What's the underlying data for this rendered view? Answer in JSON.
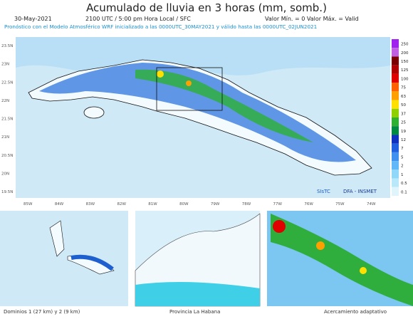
{
  "header": {
    "title": "Acumulado de lluvia en 3 horas (mm, somb.)",
    "date": "30-May-2021",
    "time": "2100 UTC / 5:00 pm Hora Local / SFC",
    "range": "Valor Mín. = 0  Valor Máx. = Valid",
    "forecast": "Pronóstico con el Modelo Atmosférico WRF inicializado a las 0000UTC_30MAY2021 y válido hasta las 0000UTC_02JUN2021"
  },
  "map": {
    "lat_labels": [
      "23.5N",
      "23N",
      "22.5N",
      "22N",
      "21.5N",
      "21N",
      "20.5N",
      "20N",
      "19.5N"
    ],
    "lon_labels": [
      "85W",
      "84W",
      "83W",
      "82W",
      "81W",
      "80W",
      "79W",
      "78W",
      "77W",
      "76W",
      "75W",
      "74W"
    ],
    "credits": [
      "SIsTC",
      "DFA - INSMET"
    ]
  },
  "scale": {
    "labels": [
      "250",
      "200",
      "150",
      "125",
      "100",
      "75",
      "63",
      "50",
      "37",
      "25",
      "19",
      "12",
      "7",
      "5",
      "2",
      "1",
      "0.5",
      "0.1"
    ],
    "colors": [
      "#a020f0",
      "#c060e0",
      "#7a0000",
      "#b00000",
      "#e00000",
      "#ff6000",
      "#ffa000",
      "#ffe000",
      "#90d000",
      "#30b030",
      "#008a40",
      "#1030c0",
      "#2060e0",
      "#4090f0",
      "#60b8f8",
      "#90d8fa",
      "#b8e8fa",
      "#e0f4fb"
    ]
  },
  "panels": [
    "Dominios 1 (27 km) y 2 (9 km)",
    "Provincia La Habana",
    "Acercamiento adaptativo"
  ]
}
